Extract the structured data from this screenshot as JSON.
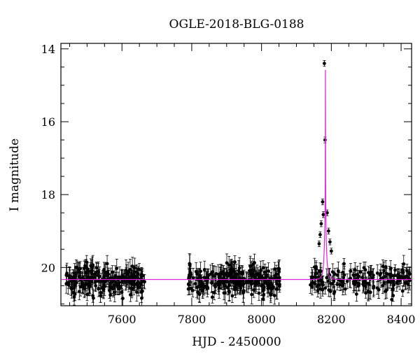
{
  "chart_data": {
    "type": "scatter",
    "title": "OGLE-2018-BLG-0188",
    "xlabel": "HJD - 2450000",
    "ylabel": "I magnitude",
    "xlim": [
      7425,
      8430
    ],
    "ylim": [
      21.05,
      13.85
    ],
    "y_inverted": true,
    "x_ticks": [
      7600,
      7800,
      8000,
      8200,
      8400
    ],
    "y_ticks": [
      14,
      16,
      18,
      20
    ],
    "grid": false,
    "colors": {
      "data": "#000000",
      "model": "#e020e0"
    },
    "model": {
      "type": "point-lens microlensing fit",
      "t0": 8183,
      "u0": 0.005,
      "tE": 6.5,
      "i_base": 20.33
    },
    "series": [
      {
        "style": "points-with-errorbars",
        "groups": [
          {
            "x_start": 7440,
            "x_end": 7665,
            "count": 220,
            "y_mean": 20.35,
            "y_scatter": 0.2,
            "err": 0.22
          },
          {
            "x_start": 7790,
            "x_end": 8055,
            "count": 250,
            "y_mean": 20.35,
            "y_scatter": 0.2,
            "err": 0.22
          },
          {
            "x_start": 8140,
            "x_end": 8425,
            "count": 170,
            "y_mean": 20.35,
            "y_scatter": 0.2,
            "err": 0.2
          }
        ],
        "peak_points": [
          {
            "x": 8180,
            "y": 14.4
          },
          {
            "x": 8182,
            "y": 16.5
          },
          {
            "x": 8175,
            "y": 18.2
          },
          {
            "x": 8177,
            "y": 18.55
          },
          {
            "x": 8171,
            "y": 18.8
          },
          {
            "x": 8188,
            "y": 18.5
          },
          {
            "x": 8192,
            "y": 19.0
          },
          {
            "x": 8168,
            "y": 19.1
          },
          {
            "x": 8165,
            "y": 19.35
          },
          {
            "x": 8196,
            "y": 19.3
          },
          {
            "x": 8200,
            "y": 19.55
          }
        ]
      }
    ]
  }
}
